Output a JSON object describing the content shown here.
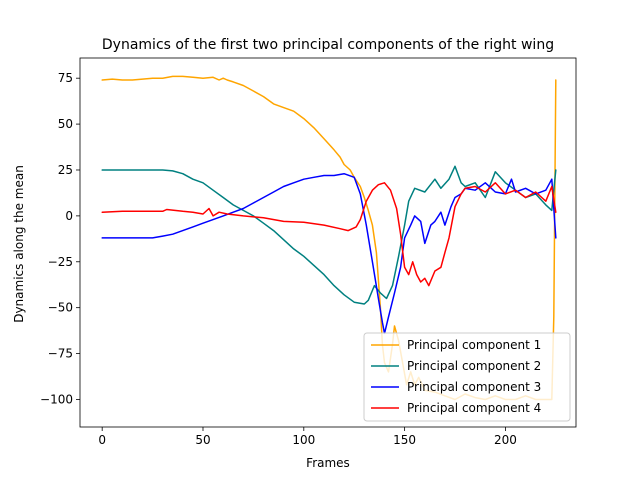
{
  "chart_data": {
    "type": "line",
    "title": "Dynamics of the first two principal components of the right wing",
    "xlabel": "Frames",
    "ylabel": "Dynamics along the mean",
    "xlim": [
      -11,
      235
    ],
    "ylim": [
      -115,
      86
    ],
    "xticks": [
      0,
      50,
      100,
      150,
      200
    ],
    "yticks": [
      -100,
      -75,
      -50,
      -25,
      0,
      25,
      50,
      75
    ],
    "grid": false,
    "legend_position": "lower right",
    "series": [
      {
        "name": "Principal component 1",
        "color": "#FFA500",
        "points": [
          [
            0,
            74
          ],
          [
            5,
            74.5
          ],
          [
            10,
            74
          ],
          [
            15,
            74
          ],
          [
            20,
            74.5
          ],
          [
            25,
            75
          ],
          [
            30,
            75
          ],
          [
            35,
            76
          ],
          [
            40,
            76
          ],
          [
            45,
            75.5
          ],
          [
            50,
            75
          ],
          [
            55,
            75.5
          ],
          [
            58,
            74
          ],
          [
            60,
            75
          ],
          [
            62,
            74
          ],
          [
            65,
            73
          ],
          [
            70,
            71
          ],
          [
            75,
            68
          ],
          [
            80,
            65
          ],
          [
            85,
            61
          ],
          [
            90,
            59
          ],
          [
            95,
            57
          ],
          [
            100,
            53
          ],
          [
            105,
            48
          ],
          [
            110,
            42
          ],
          [
            115,
            36
          ],
          [
            118,
            32
          ],
          [
            120,
            28
          ],
          [
            123,
            25
          ],
          [
            125,
            21
          ],
          [
            128,
            16
          ],
          [
            130,
            10
          ],
          [
            132,
            3
          ],
          [
            134,
            -5
          ],
          [
            136,
            -20
          ],
          [
            137,
            -35
          ],
          [
            138,
            -50
          ],
          [
            139,
            -70
          ],
          [
            140,
            -80
          ],
          [
            142,
            -85
          ],
          [
            144,
            -70
          ],
          [
            145,
            -60
          ],
          [
            147,
            -68
          ],
          [
            149,
            -80
          ],
          [
            151,
            -92
          ],
          [
            153,
            -85
          ],
          [
            155,
            -92
          ],
          [
            157,
            -88
          ],
          [
            160,
            -95
          ],
          [
            165,
            -96
          ],
          [
            170,
            -98
          ],
          [
            175,
            -100
          ],
          [
            180,
            -97
          ],
          [
            185,
            -99
          ],
          [
            190,
            -100
          ],
          [
            195,
            -98
          ],
          [
            200,
            -100
          ],
          [
            205,
            -100
          ],
          [
            210,
            -98
          ],
          [
            215,
            -100
          ],
          [
            220,
            -100
          ],
          [
            223,
            -100
          ],
          [
            224,
            -55
          ],
          [
            225,
            74
          ]
        ]
      },
      {
        "name": "Principal component 2",
        "color": "#008080",
        "points": [
          [
            0,
            25
          ],
          [
            10,
            25
          ],
          [
            20,
            25
          ],
          [
            30,
            25
          ],
          [
            35,
            24.5
          ],
          [
            40,
            23
          ],
          [
            45,
            20
          ],
          [
            50,
            18
          ],
          [
            55,
            14
          ],
          [
            60,
            10
          ],
          [
            65,
            6
          ],
          [
            70,
            3
          ],
          [
            75,
            0
          ],
          [
            80,
            -4
          ],
          [
            85,
            -8
          ],
          [
            90,
            -13
          ],
          [
            95,
            -18
          ],
          [
            100,
            -22
          ],
          [
            105,
            -27
          ],
          [
            110,
            -32
          ],
          [
            115,
            -38
          ],
          [
            120,
            -43
          ],
          [
            125,
            -47
          ],
          [
            130,
            -48
          ],
          [
            132,
            -46
          ],
          [
            135,
            -38
          ],
          [
            138,
            -42
          ],
          [
            141,
            -45
          ],
          [
            144,
            -38
          ],
          [
            147,
            -22
          ],
          [
            150,
            -5
          ],
          [
            152,
            8
          ],
          [
            155,
            15
          ],
          [
            160,
            13
          ],
          [
            165,
            20
          ],
          [
            168,
            15
          ],
          [
            172,
            20
          ],
          [
            175,
            27
          ],
          [
            178,
            18
          ],
          [
            180,
            16
          ],
          [
            185,
            18
          ],
          [
            190,
            10
          ],
          [
            195,
            24
          ],
          [
            200,
            18
          ],
          [
            205,
            14
          ],
          [
            210,
            10
          ],
          [
            215,
            12
          ],
          [
            220,
            6
          ],
          [
            223,
            3
          ],
          [
            225,
            25
          ]
        ]
      },
      {
        "name": "Principal component 3",
        "color": "#0000FF",
        "points": [
          [
            0,
            -12
          ],
          [
            5,
            -12
          ],
          [
            10,
            -12
          ],
          [
            15,
            -12
          ],
          [
            20,
            -12
          ],
          [
            25,
            -12
          ],
          [
            30,
            -11
          ],
          [
            35,
            -10
          ],
          [
            40,
            -8
          ],
          [
            45,
            -6
          ],
          [
            50,
            -4
          ],
          [
            55,
            -2
          ],
          [
            60,
            0
          ],
          [
            65,
            2
          ],
          [
            70,
            4
          ],
          [
            75,
            7
          ],
          [
            80,
            10
          ],
          [
            85,
            13
          ],
          [
            90,
            16
          ],
          [
            95,
            18
          ],
          [
            100,
            20
          ],
          [
            105,
            21
          ],
          [
            110,
            22
          ],
          [
            115,
            22
          ],
          [
            120,
            23
          ],
          [
            125,
            21
          ],
          [
            128,
            12
          ],
          [
            131,
            -5
          ],
          [
            134,
            -25
          ],
          [
            137,
            -45
          ],
          [
            139,
            -58
          ],
          [
            140,
            -64
          ],
          [
            142,
            -55
          ],
          [
            145,
            -42
          ],
          [
            148,
            -28
          ],
          [
            150,
            -12
          ],
          [
            153,
            -5
          ],
          [
            155,
            0
          ],
          [
            158,
            -3
          ],
          [
            160,
            -15
          ],
          [
            163,
            -5
          ],
          [
            165,
            -3
          ],
          [
            168,
            2
          ],
          [
            170,
            -5
          ],
          [
            173,
            5
          ],
          [
            175,
            10
          ],
          [
            178,
            12
          ],
          [
            180,
            15
          ],
          [
            185,
            14
          ],
          [
            190,
            18
          ],
          [
            195,
            13
          ],
          [
            200,
            12
          ],
          [
            203,
            20
          ],
          [
            205,
            13
          ],
          [
            210,
            15
          ],
          [
            215,
            12
          ],
          [
            220,
            14
          ],
          [
            223,
            20
          ],
          [
            225,
            -12
          ]
        ]
      },
      {
        "name": "Principal component 4",
        "color": "#FF0000",
        "points": [
          [
            0,
            2
          ],
          [
            10,
            2.5
          ],
          [
            20,
            2.5
          ],
          [
            30,
            2.5
          ],
          [
            32,
            3.5
          ],
          [
            40,
            2.5
          ],
          [
            45,
            2
          ],
          [
            50,
            1
          ],
          [
            53,
            4
          ],
          [
            55,
            0
          ],
          [
            58,
            2
          ],
          [
            62,
            1
          ],
          [
            70,
            0
          ],
          [
            80,
            -1
          ],
          [
            90,
            -3
          ],
          [
            100,
            -3.5
          ],
          [
            110,
            -5
          ],
          [
            118,
            -7
          ],
          [
            122,
            -8
          ],
          [
            126,
            -6
          ],
          [
            128,
            -2
          ],
          [
            131,
            8
          ],
          [
            134,
            14
          ],
          [
            137,
            17
          ],
          [
            140,
            18
          ],
          [
            143,
            14
          ],
          [
            146,
            4
          ],
          [
            148,
            -10
          ],
          [
            150,
            -28
          ],
          [
            152,
            -32
          ],
          [
            154,
            -25
          ],
          [
            156,
            -32
          ],
          [
            158,
            -36
          ],
          [
            160,
            -34
          ],
          [
            162,
            -38
          ],
          [
            165,
            -30
          ],
          [
            168,
            -28
          ],
          [
            170,
            -20
          ],
          [
            172,
            -12
          ],
          [
            175,
            5
          ],
          [
            178,
            12
          ],
          [
            180,
            15
          ],
          [
            185,
            16
          ],
          [
            190,
            13
          ],
          [
            195,
            18
          ],
          [
            200,
            12
          ],
          [
            205,
            14
          ],
          [
            210,
            10
          ],
          [
            215,
            13
          ],
          [
            220,
            8
          ],
          [
            223,
            16
          ],
          [
            225,
            2
          ]
        ]
      }
    ]
  }
}
